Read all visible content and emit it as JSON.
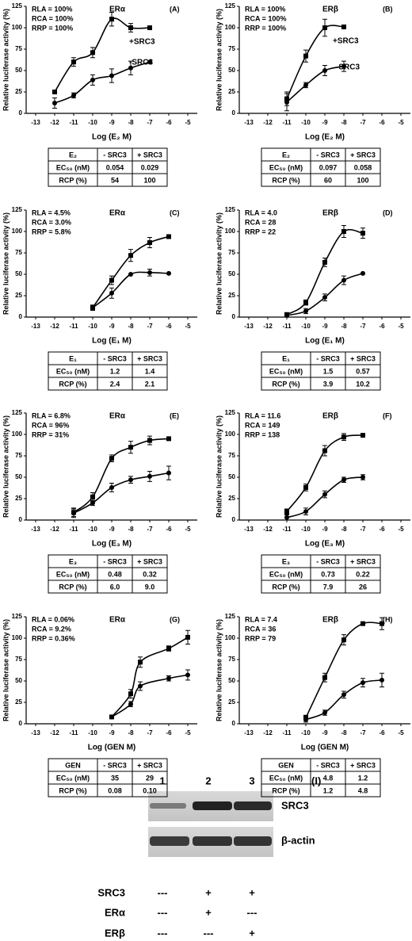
{
  "chart_data": [
    {
      "type": "scatter",
      "panel": "(A)",
      "receptor": "ERα",
      "stats": [
        "RLA = 100%",
        "RCA = 100%",
        "RRP = 100%"
      ],
      "x_label": "Log (E₂ M)",
      "y_label": "Relative luciferase activity (%)",
      "xlim": [
        -13.5,
        -4.5
      ],
      "xticks": [
        -13,
        -12,
        -11,
        -10,
        -9,
        -8,
        -7,
        -6,
        -5
      ],
      "ylim": [
        0,
        125
      ],
      "yticks": [
        0,
        25,
        50,
        75,
        100,
        125
      ],
      "series": [
        {
          "name": "+SRC3",
          "marker": "square",
          "color": "#000000",
          "x": [
            -12,
            -11,
            -10,
            -9,
            -8,
            -7
          ],
          "values": [
            25,
            60,
            71,
            110,
            100,
            100
          ],
          "errors": [
            0,
            5,
            6,
            8,
            5,
            0
          ]
        },
        {
          "name": "-SRC3",
          "marker": "circle",
          "color": "#000000",
          "x": [
            -12,
            -11,
            -10,
            -9,
            -8,
            -7
          ],
          "values": [
            12,
            21,
            39,
            44,
            53,
            60
          ],
          "errors": [
            6,
            3,
            6,
            8,
            8,
            0
          ]
        }
      ]
    },
    {
      "type": "scatter",
      "panel": "(B)",
      "receptor": "ERβ",
      "stats": [
        "RLA = 100%",
        "RCA = 100%",
        "RRP = 100%"
      ],
      "x_label": "Log (E₂ M)",
      "y_label": "Relative luciferase activity (%)",
      "xlim": [
        -13.5,
        -4.5
      ],
      "xticks": [
        -13,
        -12,
        -11,
        -10,
        -9,
        -8,
        -7,
        -6,
        -5
      ],
      "ylim": [
        0,
        125
      ],
      "yticks": [
        0,
        25,
        50,
        75,
        100,
        125
      ],
      "series": [
        {
          "name": "+SRC3",
          "marker": "square",
          "color": "#000000",
          "x": [
            -11,
            -10,
            -9,
            -8
          ],
          "values": [
            17,
            67,
            100,
            101
          ],
          "errors": [
            8,
            7,
            10,
            0
          ]
        },
        {
          "name": "-SRC3",
          "marker": "circle",
          "color": "#000000",
          "x": [
            -11,
            -10,
            -9,
            -8
          ],
          "values": [
            13,
            33,
            50,
            55
          ],
          "errors": [
            10,
            3,
            6,
            6
          ]
        }
      ]
    },
    {
      "type": "scatter",
      "panel": "(C)",
      "receptor": "ERα",
      "stats": [
        "RLA = 4.5%",
        "RCA = 3.0%",
        "RRP = 5.8%"
      ],
      "x_label": "Log (E₁ M)",
      "y_label": "Relative luciferase activity (%)",
      "xlim": [
        -13.5,
        -4.5
      ],
      "xticks": [
        -13,
        -12,
        -11,
        -10,
        -9,
        -8,
        -7,
        -6,
        -5
      ],
      "ylim": [
        0,
        125
      ],
      "yticks": [
        0,
        25,
        50,
        75,
        100,
        125
      ],
      "series": [
        {
          "marker": "square",
          "color": "#000000",
          "x": [
            -10,
            -9,
            -8,
            -7,
            -6
          ],
          "values": [
            11,
            43,
            72,
            87,
            94
          ],
          "errors": [
            3,
            5,
            7,
            6,
            0
          ]
        },
        {
          "marker": "circle",
          "color": "#000000",
          "x": [
            -10,
            -9,
            -8,
            -7,
            -6
          ],
          "values": [
            11,
            28,
            50,
            52,
            51
          ],
          "errors": [
            3,
            6,
            0,
            4,
            0
          ]
        }
      ]
    },
    {
      "type": "scatter",
      "panel": "(D)",
      "receptor": "ERβ",
      "stats": [
        "RLA = 4.0",
        "RCA = 28",
        "RRP = 22"
      ],
      "x_label": "Log (E₁ M)",
      "y_label": "Relative luciferase activity (%)",
      "xlim": [
        -13.5,
        -4.5
      ],
      "xticks": [
        -13,
        -12,
        -11,
        -10,
        -9,
        -8,
        -7,
        -6,
        -5
      ],
      "ylim": [
        0,
        125
      ],
      "yticks": [
        0,
        25,
        50,
        75,
        100,
        125
      ],
      "series": [
        {
          "marker": "square",
          "color": "#000000",
          "x": [
            -11,
            -10,
            -9,
            -8,
            -7
          ],
          "values": [
            3,
            17,
            64,
            100,
            98
          ],
          "errors": [
            0,
            3,
            5,
            7,
            6
          ]
        },
        {
          "marker": "circle",
          "color": "#000000",
          "x": [
            -11,
            -10,
            -9,
            -8,
            -7
          ],
          "values": [
            2,
            7,
            23,
            43,
            51
          ],
          "errors": [
            0,
            3,
            4,
            5,
            0
          ]
        }
      ]
    },
    {
      "type": "scatter",
      "panel": "(E)",
      "receptor": "ERα",
      "stats": [
        "RLA = 6.8%",
        "RCA = 96%",
        "RRP = 31%"
      ],
      "x_label": "Log (E₃ M)",
      "y_label": "Relative luciferase activity (%)",
      "xlim": [
        -13.5,
        -4.5
      ],
      "xticks": [
        -13,
        -12,
        -11,
        -10,
        -9,
        -8,
        -7,
        -6,
        -5
      ],
      "ylim": [
        0,
        125
      ],
      "yticks": [
        0,
        25,
        50,
        75,
        100,
        125
      ],
      "series": [
        {
          "marker": "square",
          "color": "#000000",
          "x": [
            -11,
            -10,
            -9,
            -8,
            -7,
            -6
          ],
          "values": [
            9,
            27,
            72,
            85,
            93,
            95
          ],
          "errors": [
            5,
            5,
            4,
            7,
            5,
            0
          ]
        },
        {
          "marker": "circle",
          "color": "#000000",
          "x": [
            -11,
            -10,
            -9,
            -8,
            -7,
            -6
          ],
          "values": [
            8,
            20,
            38,
            47,
            51,
            55
          ],
          "errors": [
            5,
            3,
            5,
            4,
            6,
            8
          ]
        }
      ]
    },
    {
      "type": "scatter",
      "panel": "(F)",
      "receptor": "ERβ",
      "stats": [
        "RLA = 11.6",
        "RCA = 149",
        "RRP = 138"
      ],
      "x_label": "Log (E₃ M)",
      "y_label": "Relative luciferase activity (%)",
      "xlim": [
        -13.5,
        -4.5
      ],
      "xticks": [
        -13,
        -12,
        -11,
        -10,
        -9,
        -8,
        -7,
        -6,
        -5
      ],
      "ylim": [
        0,
        125
      ],
      "yticks": [
        0,
        25,
        50,
        75,
        100,
        125
      ],
      "series": [
        {
          "marker": "square",
          "color": "#000000",
          "x": [
            -11,
            -10,
            -9,
            -8,
            -7
          ],
          "values": [
            10,
            38,
            81,
            97,
            99
          ],
          "errors": [
            3,
            4,
            6,
            4,
            0
          ]
        },
        {
          "marker": "circle",
          "color": "#000000",
          "x": [
            -11,
            -10,
            -9,
            -8,
            -7
          ],
          "values": [
            3,
            10,
            30,
            47,
            50
          ],
          "errors": [
            3,
            4,
            4,
            3,
            3
          ]
        }
      ]
    },
    {
      "type": "scatter",
      "panel": "(G)",
      "receptor": "ERα",
      "stats": [
        "RLA = 0.06%",
        "RCA = 9.2%",
        "RRP = 0.36%"
      ],
      "x_label": "Log (GEN M)",
      "y_label": "Relative luciferase activity (%)",
      "xlim": [
        -13.5,
        -4.5
      ],
      "xticks": [
        -13,
        -12,
        -11,
        -10,
        -9,
        -8,
        -7,
        -6,
        -5
      ],
      "ylim": [
        0,
        125
      ],
      "yticks": [
        0,
        25,
        50,
        75,
        100,
        125
      ],
      "series": [
        {
          "marker": "square",
          "color": "#000000",
          "x": [
            -9,
            -8,
            -7.5,
            -6,
            -5
          ],
          "values": [
            8,
            35,
            72,
            88,
            101
          ],
          "errors": [
            0,
            5,
            6,
            3,
            8
          ]
        },
        {
          "marker": "circle",
          "color": "#000000",
          "x": [
            -9,
            -8,
            -7.5,
            -6,
            -5
          ],
          "values": [
            8,
            23,
            44,
            53,
            57
          ],
          "errors": [
            0,
            3,
            5,
            3,
            6
          ]
        }
      ]
    },
    {
      "type": "scatter",
      "panel": "(H)",
      "receptor": "ERβ",
      "stats": [
        "RLA = 7.4",
        "RCA = 36",
        "RRP = 79"
      ],
      "x_label": "Log (GEN M)",
      "y_label": "Relative luciferase activity (%)",
      "xlim": [
        -13.5,
        -4.5
      ],
      "xticks": [
        -13,
        -12,
        -11,
        -10,
        -9,
        -8,
        -7,
        -6,
        -5
      ],
      "ylim": [
        0,
        125
      ],
      "yticks": [
        0,
        25,
        50,
        75,
        100,
        125
      ],
      "series": [
        {
          "marker": "square",
          "color": "#000000",
          "x": [
            -10,
            -9,
            -8,
            -7,
            -6
          ],
          "values": [
            7,
            54,
            98,
            117,
            117
          ],
          "errors": [
            3,
            5,
            6,
            0,
            7
          ]
        },
        {
          "marker": "circle",
          "color": "#000000",
          "x": [
            -10,
            -9,
            -8,
            -7,
            -6
          ],
          "values": [
            5,
            13,
            34,
            48,
            51
          ],
          "errors": [
            3,
            3,
            4,
            5,
            8
          ]
        }
      ]
    }
  ],
  "tables": [
    {
      "rows": [
        [
          "E₂",
          "- SRC3",
          "+ SRC3"
        ],
        [
          "EC₅₀ (nM)",
          "0.054",
          "0.029"
        ],
        [
          "RCP (%)",
          "54",
          "100"
        ]
      ]
    },
    {
      "rows": [
        [
          "E₂",
          "- SRC3",
          "+ SRC3"
        ],
        [
          "EC₅₀ (nM)",
          "0.097",
          "0.058"
        ],
        [
          "RCP (%)",
          "60",
          "100"
        ]
      ]
    },
    {
      "rows": [
        [
          "E₁",
          "- SRC3",
          "+ SRC3"
        ],
        [
          "EC₅₀ (nM)",
          "1.2",
          "1.4"
        ],
        [
          "RCP (%)",
          "2.4",
          "2.1"
        ]
      ]
    },
    {
      "rows": [
        [
          "E₁",
          "- SRC3",
          "+ SRC3"
        ],
        [
          "EC₅₀ (nM)",
          "1.5",
          "0.57"
        ],
        [
          "RCP (%)",
          "3.9",
          "10.2"
        ]
      ]
    },
    {
      "rows": [
        [
          "E₃",
          "- SRC3",
          "+ SRC3"
        ],
        [
          "EC₅₀ (nM)",
          "0.48",
          "0.32"
        ],
        [
          "RCP (%)",
          "6.0",
          "9.0"
        ]
      ]
    },
    {
      "rows": [
        [
          "E₃",
          "- SRC3",
          "+ SRC3"
        ],
        [
          "EC₅₀ (nM)",
          "0.73",
          "0.22"
        ],
        [
          "RCP (%)",
          "7.9",
          "26"
        ]
      ]
    },
    {
      "rows": [
        [
          "GEN",
          "- SRC3",
          "+ SRC3"
        ],
        [
          "EC₅₀ (nM)",
          "35",
          "29"
        ],
        [
          "RCP (%)",
          "0.08",
          "0.10"
        ]
      ]
    },
    {
      "rows": [
        [
          "GEN",
          "- SRC3",
          "+ SRC3"
        ],
        [
          "EC₅₀ (nM)",
          "4.8",
          "1.2"
        ],
        [
          "RCP (%)",
          "1.2",
          "4.8"
        ]
      ]
    }
  ],
  "blot": {
    "panel": "(I)",
    "lanes": [
      "1",
      "2",
      "3"
    ],
    "bands": [
      "SRC3",
      "β-actin"
    ],
    "conditions": [
      {
        "label": "SRC3",
        "values": [
          "---",
          "+",
          "+"
        ]
      },
      {
        "label": "ERα",
        "values": [
          "---",
          "+",
          "---"
        ]
      },
      {
        "label": "ERβ",
        "values": [
          "---",
          "---",
          "+"
        ]
      }
    ]
  }
}
